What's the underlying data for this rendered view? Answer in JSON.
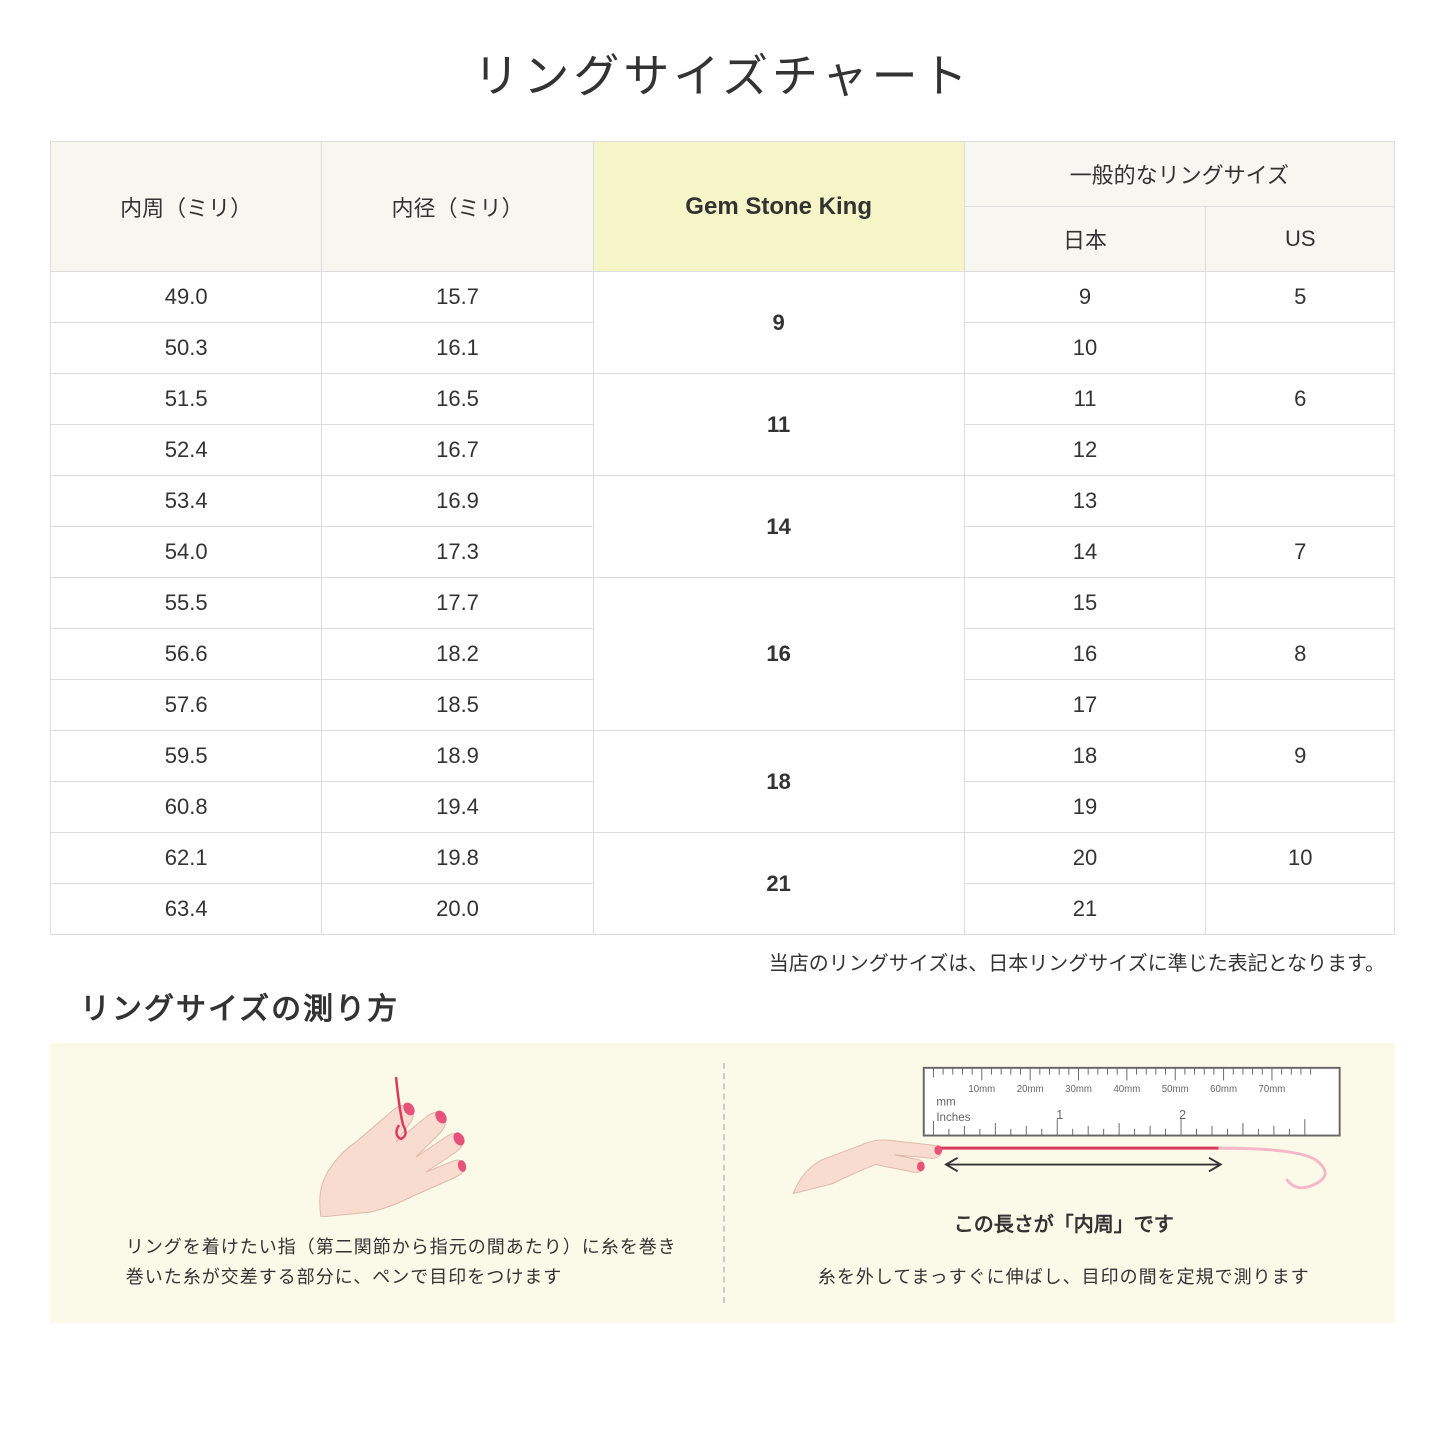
{
  "title": "リングサイズチャート",
  "table": {
    "headers": {
      "circumference": "内周（ミリ）",
      "diameter": "内径（ミリ）",
      "gsk": "Gem Stone King",
      "general": "一般的なリングサイズ",
      "japan": "日本",
      "us": "US"
    },
    "groups": [
      {
        "gsk": "9",
        "rows": [
          {
            "circ": "49.0",
            "dia": "15.7",
            "jp": "9",
            "us": "5"
          },
          {
            "circ": "50.3",
            "dia": "16.1",
            "jp": "10",
            "us": ""
          }
        ]
      },
      {
        "gsk": "11",
        "rows": [
          {
            "circ": "51.5",
            "dia": "16.5",
            "jp": "11",
            "us": "6"
          },
          {
            "circ": "52.4",
            "dia": "16.7",
            "jp": "12",
            "us": ""
          }
        ]
      },
      {
        "gsk": "14",
        "rows": [
          {
            "circ": "53.4",
            "dia": "16.9",
            "jp": "13",
            "us": ""
          },
          {
            "circ": "54.0",
            "dia": "17.3",
            "jp": "14",
            "us": "7"
          }
        ]
      },
      {
        "gsk": "16",
        "rows": [
          {
            "circ": "55.5",
            "dia": "17.7",
            "jp": "15",
            "us": ""
          },
          {
            "circ": "56.6",
            "dia": "18.2",
            "jp": "16",
            "us": "8"
          },
          {
            "circ": "57.6",
            "dia": "18.5",
            "jp": "17",
            "us": ""
          }
        ]
      },
      {
        "gsk": "18",
        "rows": [
          {
            "circ": "59.5",
            "dia": "18.9",
            "jp": "18",
            "us": "9"
          },
          {
            "circ": "60.8",
            "dia": "19.4",
            "jp": "19",
            "us": ""
          }
        ]
      },
      {
        "gsk": "21",
        "rows": [
          {
            "circ": "62.1",
            "dia": "19.8",
            "jp": "20",
            "us": "10"
          },
          {
            "circ": "63.4",
            "dia": "20.0",
            "jp": "21",
            "us": ""
          }
        ]
      }
    ]
  },
  "note": "当店のリングサイズは、日本リングサイズに準じた表記となります。",
  "subtitle": "リングサイズの測り方",
  "instructions": {
    "left": {
      "line1": "リングを着けたい指（第二関節から指元の間あたり）に糸を巻き",
      "line2": "巻いた糸が交差する部分に、ペンで目印をつけます"
    },
    "right": {
      "measure_label": "この長さが「内周」です",
      "text": "糸を外してまっすぐに伸ばし、目印の間を定規で測ります",
      "ruler_mm": "mm",
      "ruler_in": "Inches",
      "ruler_ticks": [
        "10mm",
        "20mm",
        "30mm",
        "40mm",
        "50mm",
        "60mm",
        "70mm"
      ]
    }
  },
  "colors": {
    "header_bg": "#f7f6f0",
    "highlight_bg": "#f6f5c8",
    "border": "#dddddd",
    "panel_bg": "#fbf9e8",
    "skin": "#f9dcd0",
    "nail": "#e8527a",
    "thread": "#d93b5e",
    "ruler_border": "#666666"
  }
}
